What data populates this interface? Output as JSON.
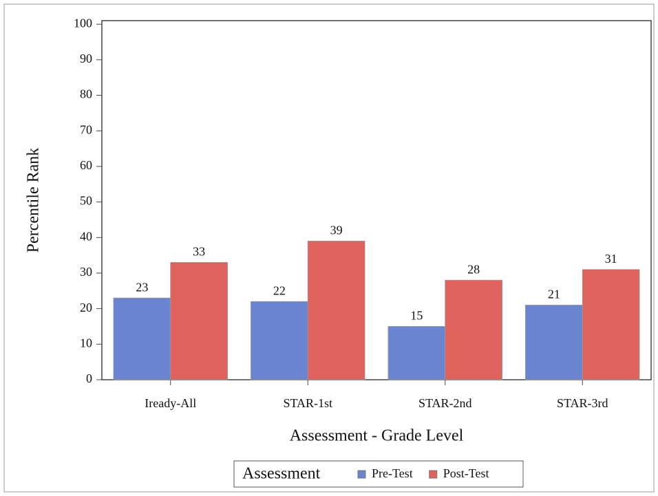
{
  "chart_data": {
    "type": "grouped_bar",
    "x_label": "Assessment - Grade Level",
    "y_label": "Percentile Rank",
    "categories": [
      "Iready-All",
      "STAR-1st",
      "STAR-2nd",
      "STAR-3rd"
    ],
    "series": [
      {
        "name": "Pre-Test",
        "color": "#6a84d2",
        "values": [
          23,
          22,
          15,
          21
        ]
      },
      {
        "name": "Post-Test",
        "color": "#e0625c",
        "values": [
          33,
          39,
          28,
          31
        ]
      }
    ],
    "ylim": [
      0,
      101
    ],
    "yticks": [
      0,
      10,
      20,
      30,
      40,
      50,
      60,
      70,
      80,
      90,
      100
    ],
    "legend_title": "Assessment",
    "legend_position": "bottom"
  }
}
